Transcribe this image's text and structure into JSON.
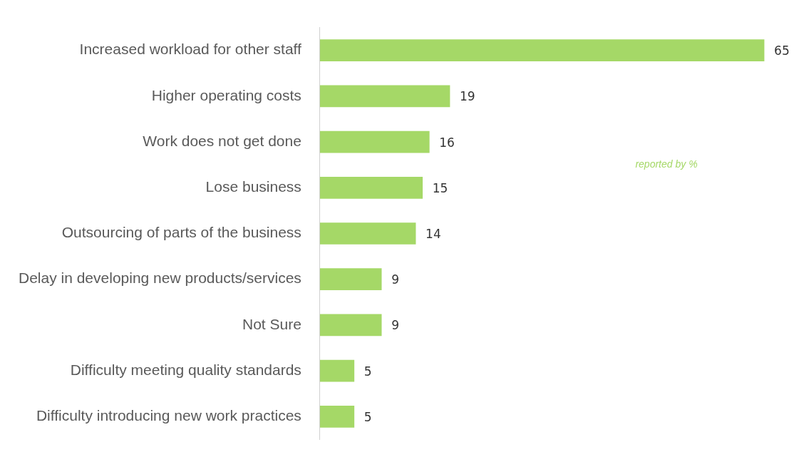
{
  "chart_data": {
    "type": "bar",
    "orientation": "horizontal",
    "categories": [
      "Increased workload for other staff",
      "Higher operating costs",
      "Work does not get done",
      "Lose business",
      "Outsourcing of parts of the business",
      "Delay in developing new products/services",
      "Not Sure",
      "Difficulty meeting quality standards",
      "Difficulty introducing new work practices"
    ],
    "values": [
      65,
      19,
      16,
      15,
      14,
      9,
      9,
      5,
      5
    ],
    "color": "#a5d867",
    "data_labels": true,
    "annotations": [
      "reported by %"
    ],
    "legend": false
  }
}
